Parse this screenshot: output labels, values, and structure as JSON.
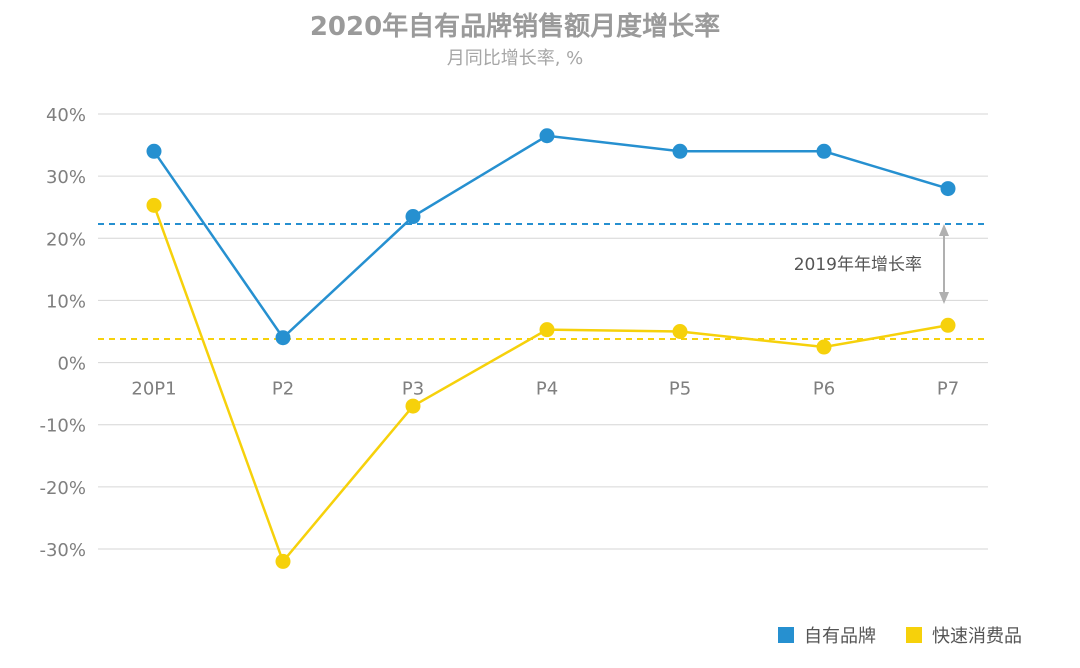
{
  "chart_data": {
    "type": "line",
    "title": "2020年自有品牌销售额月度增长率",
    "subtitle": "月同比增长率, %",
    "categories": [
      "20P1",
      "P2",
      "P3",
      "P4",
      "P5",
      "P6",
      "P7"
    ],
    "ylim": [
      -30,
      40
    ],
    "yticks": [
      40,
      30,
      20,
      10,
      0,
      -10,
      -20,
      -30
    ],
    "ytick_labels": [
      "40%",
      "30%",
      "20%",
      "10%",
      "0%",
      "-10%",
      "-20%",
      "-30%"
    ],
    "grid": true,
    "legend_position": "bottom-right",
    "series": [
      {
        "name": "自有品牌",
        "color": "#2690d0",
        "values": [
          34.0,
          4.0,
          23.5,
          36.5,
          34.0,
          34.0,
          28.0
        ],
        "reference_2019": 22.3
      },
      {
        "name": "快速消费品",
        "color": "#f6d10b",
        "values": [
          25.3,
          -32.0,
          -7.0,
          5.3,
          5.0,
          2.5,
          6.0
        ],
        "reference_2019": 3.8
      }
    ],
    "annotation": {
      "text": "2019年年增长率"
    }
  }
}
